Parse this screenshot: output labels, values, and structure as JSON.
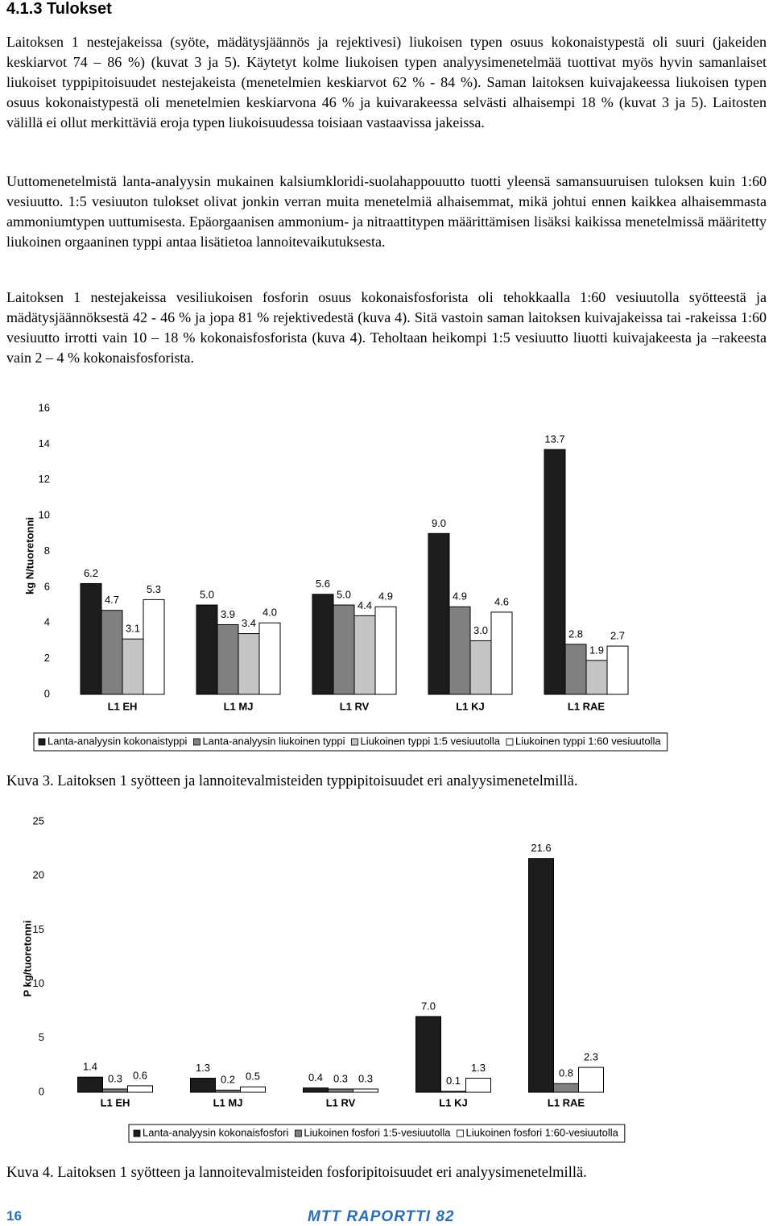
{
  "heading": "4.1.3 Tulokset",
  "paragraphs": [
    "Laitoksen 1 nestejakeissa (syöte, mädätysjäännös ja rejektivesi) liukoisen typen osuus kokonaistypestä oli suuri (jakeiden keskiarvot 74 – 86 %) (kuvat 3 ja 5). Käytetyt kolme liukoisen typen analyysimenetelmää tuottivat myös hyvin samanlaiset liukoiset typpipitoisuudet nestejakeista (menetelmien keskiarvot 62 % - 84 %). Saman laitoksen kuivajakeessa liukoisen typen osuus kokonaistypestä oli menetelmien keskiarvona 46 % ja kuivarakeessa selvästi alhaisempi 18 % (kuvat 3 ja 5). Laitosten välillä ei ollut merkittäviä eroja typen liukoisuudessa toisiaan vastaavissa jakeissa.",
    "Uuttomenetelmistä lanta-analyysin mukainen kalsiumkloridi-suolahappouutto tuotti yleensä samansuuruisen tuloksen kuin 1:60 vesiuutto. 1:5 vesiuuton tulokset olivat jonkin verran muita menetelmiä alhaisemmat, mikä johtui ennen kaikkea alhaisemmasta ammoniumtypen uuttumisesta. Epäorgaanisen ammonium- ja nitraattitypen määrittämisen lisäksi kaikissa menetelmissä määritetty liukoinen orgaaninen typpi antaa lisätietoa lannoitevaikutuksesta.",
    "Laitoksen 1 nestejakeissa vesiliukoisen fosforin osuus kokonaisfosforista oli tehokkaalla 1:60 vesiuutolla syötteestä ja mädätysjäännöksestä 42 - 46 % ja jopa 81 % rejektivedestä (kuva 4). Sitä vastoin saman laitoksen kuivajakeissa tai -rakeissa 1:60 vesiuutto irrotti vain 10 – 18 % kokonaisfosforista (kuva 4). Teholtaan heikompi 1:5 vesiuutto liuotti kuivajakeesta ja –rakeesta vain 2 – 4 % kokonaisfosforista."
  ],
  "chart_data": [
    {
      "type": "bar",
      "ylabel": "kg N/tuoretonni",
      "categories": [
        "L1 EH",
        "L1 MJ",
        "L1 RV",
        "L1 KJ",
        "L1 RAE"
      ],
      "ylim": [
        0,
        16
      ],
      "yticks": [
        0,
        2,
        4,
        6,
        8,
        10,
        12,
        14,
        16
      ],
      "grid": false,
      "series": [
        {
          "name": "Lanta-analyysin kokonaistyppi",
          "color": "#1c1c1c",
          "values": [
            6.2,
            5.0,
            5.6,
            9.0,
            13.7
          ],
          "value_labels": [
            "6.2",
            "5.0",
            "5.6",
            "9.0",
            "13.7"
          ]
        },
        {
          "name": "Lanta-analyysin liukoinen typpi",
          "color": "#808080",
          "values": [
            4.7,
            3.9,
            5.0,
            4.9,
            2.8
          ],
          "value_labels": [
            "4.7",
            "3.9",
            "5.0",
            "4.9",
            "2.8"
          ]
        },
        {
          "name": "Liukoinen typpi 1:5 vesiuutolla",
          "color": "#c4c4c4",
          "values": [
            3.1,
            3.4,
            4.4,
            3.0,
            1.9
          ],
          "value_labels": [
            "3.1",
            "3.4",
            "4.4",
            "3.0",
            "1.9"
          ]
        },
        {
          "name": "Liukoinen typpi 1:60 vesiuutolla",
          "color": "#ffffff",
          "values": [
            5.3,
            4.0,
            4.9,
            4.6,
            2.7
          ],
          "value_labels": [
            "5.3",
            "4.0",
            "4.9",
            "4.6",
            "2.7"
          ]
        }
      ]
    },
    {
      "type": "bar",
      "ylabel": "P kg/tuoretonni",
      "categories": [
        "L1 EH",
        "L1 MJ",
        "L1 RV",
        "L1 KJ",
        "L1 RAE"
      ],
      "ylim": [
        0,
        25
      ],
      "yticks": [
        0,
        5,
        10,
        15,
        20,
        25
      ],
      "grid": false,
      "series": [
        {
          "name": "Lanta-analyysin kokonaisfosfori",
          "color": "#1c1c1c",
          "values": [
            1.4,
            1.3,
            0.4,
            7.0,
            21.6
          ],
          "value_labels": [
            "1.4",
            "1.3",
            "0.4",
            "7.0",
            "21.6"
          ]
        },
        {
          "name": "Liukoinen fosfori 1:5-vesiuutolla",
          "color": "#808080",
          "values": [
            0.3,
            0.2,
            0.3,
            0.1,
            0.8
          ],
          "value_labels": [
            "0.3",
            "0.2",
            "0.3",
            "0.1",
            "0.8"
          ]
        },
        {
          "name": "Liukoinen fosfori 1:60-vesiuutolla",
          "color": "#ffffff",
          "values": [
            0.6,
            0.5,
            0.3,
            1.3,
            2.3
          ],
          "value_labels": [
            "0.6",
            "0.5",
            "0.3",
            "1.3",
            "2.3"
          ]
        }
      ]
    }
  ],
  "captions": [
    "Kuva 3. Laitoksen 1 syötteen ja lannoitevalmisteiden typpipitoisuudet eri analyysimenetelmillä.",
    "Kuva 4. Laitoksen 1 syötteen ja lannoitevalmisteiden fosforipitoisuudet eri analyysimenetelmillä."
  ],
  "footer": {
    "page": "16",
    "brand": "MTT RAPORTTI 82"
  }
}
